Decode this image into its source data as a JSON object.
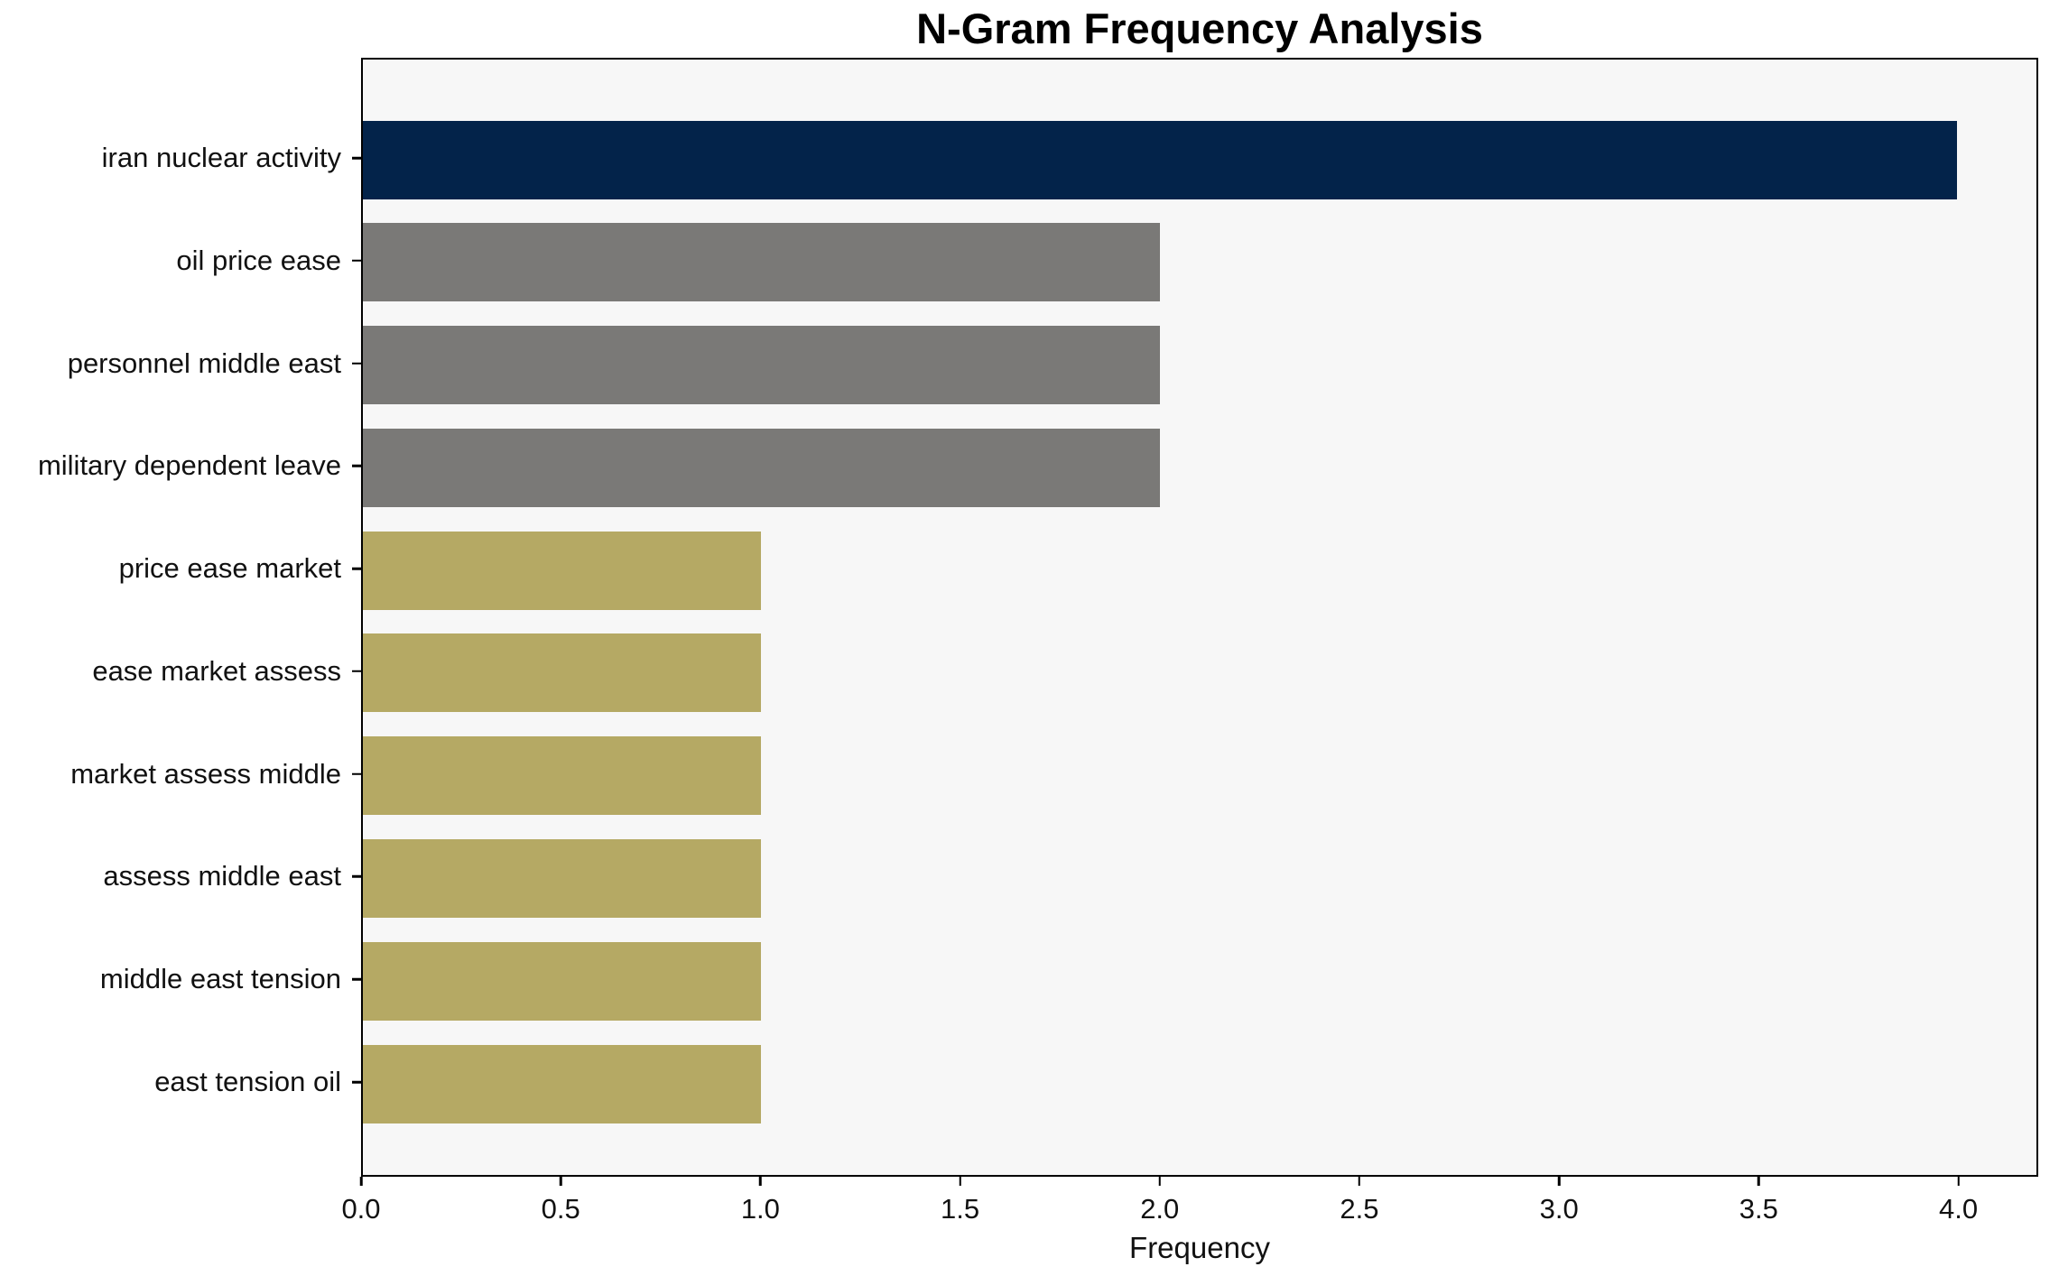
{
  "chart_data": {
    "type": "bar",
    "orientation": "horizontal",
    "title": "N-Gram Frequency Analysis",
    "xlabel": "Frequency",
    "ylabel": "",
    "categories": [
      "iran nuclear activity",
      "oil price ease",
      "personnel middle east",
      "military dependent leave",
      "price ease market",
      "ease market assess",
      "market assess middle",
      "assess middle east",
      "middle east tension",
      "east tension oil"
    ],
    "values": [
      4,
      2,
      2,
      2,
      1,
      1,
      1,
      1,
      1,
      1
    ],
    "bar_colors": [
      "#03234a",
      "#7a7977",
      "#7a7977",
      "#7a7977",
      "#b5a964",
      "#b5a964",
      "#b5a964",
      "#b5a964",
      "#b5a964",
      "#b5a964"
    ],
    "xlim": [
      0,
      4.2
    ],
    "xticks": [
      {
        "value": 0.0,
        "label": "0.0"
      },
      {
        "value": 0.5,
        "label": "0.5"
      },
      {
        "value": 1.0,
        "label": "1.0"
      },
      {
        "value": 1.5,
        "label": "1.5"
      },
      {
        "value": 2.0,
        "label": "2.0"
      },
      {
        "value": 2.5,
        "label": "2.5"
      },
      {
        "value": 3.0,
        "label": "3.0"
      },
      {
        "value": 3.5,
        "label": "3.5"
      },
      {
        "value": 4.0,
        "label": "4.0"
      }
    ],
    "grid": false,
    "legend": null
  },
  "colors": {
    "figure_background": "#ffffff",
    "plot_background": "#f7f7f7",
    "spine": "#000000",
    "text": "#111111",
    "highlight_bar": "#03234a",
    "secondary_bar": "#7a7977",
    "tertiary_bar": "#b5a964"
  }
}
